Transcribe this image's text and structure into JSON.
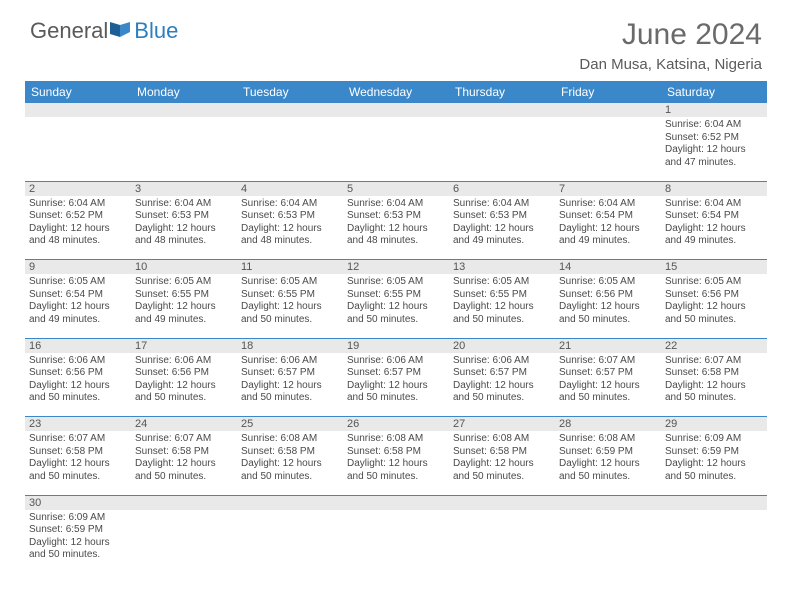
{
  "brand": {
    "general": "General",
    "blue": "Blue"
  },
  "title": "June 2024",
  "location": "Dan Musa, Katsina, Nigeria",
  "colors": {
    "header_bg": "#3a87c9",
    "header_text": "#ffffff",
    "daynum_bg": "#e9e9e9",
    "border": "#3a87c9",
    "text": "#4a4a4a",
    "title_text": "#6a6a6a",
    "logo_blue": "#2b7fbf"
  },
  "days": [
    "Sunday",
    "Monday",
    "Tuesday",
    "Wednesday",
    "Thursday",
    "Friday",
    "Saturday"
  ],
  "weeks": [
    [
      null,
      null,
      null,
      null,
      null,
      null,
      {
        "n": "1",
        "sr": "6:04 AM",
        "ss": "6:52 PM",
        "dl": "12 hours and 47 minutes."
      }
    ],
    [
      {
        "n": "2",
        "sr": "6:04 AM",
        "ss": "6:52 PM",
        "dl": "12 hours and 48 minutes."
      },
      {
        "n": "3",
        "sr": "6:04 AM",
        "ss": "6:53 PM",
        "dl": "12 hours and 48 minutes."
      },
      {
        "n": "4",
        "sr": "6:04 AM",
        "ss": "6:53 PM",
        "dl": "12 hours and 48 minutes."
      },
      {
        "n": "5",
        "sr": "6:04 AM",
        "ss": "6:53 PM",
        "dl": "12 hours and 48 minutes."
      },
      {
        "n": "6",
        "sr": "6:04 AM",
        "ss": "6:53 PM",
        "dl": "12 hours and 49 minutes."
      },
      {
        "n": "7",
        "sr": "6:04 AM",
        "ss": "6:54 PM",
        "dl": "12 hours and 49 minutes."
      },
      {
        "n": "8",
        "sr": "6:04 AM",
        "ss": "6:54 PM",
        "dl": "12 hours and 49 minutes."
      }
    ],
    [
      {
        "n": "9",
        "sr": "6:05 AM",
        "ss": "6:54 PM",
        "dl": "12 hours and 49 minutes."
      },
      {
        "n": "10",
        "sr": "6:05 AM",
        "ss": "6:55 PM",
        "dl": "12 hours and 49 minutes."
      },
      {
        "n": "11",
        "sr": "6:05 AM",
        "ss": "6:55 PM",
        "dl": "12 hours and 50 minutes."
      },
      {
        "n": "12",
        "sr": "6:05 AM",
        "ss": "6:55 PM",
        "dl": "12 hours and 50 minutes."
      },
      {
        "n": "13",
        "sr": "6:05 AM",
        "ss": "6:55 PM",
        "dl": "12 hours and 50 minutes."
      },
      {
        "n": "14",
        "sr": "6:05 AM",
        "ss": "6:56 PM",
        "dl": "12 hours and 50 minutes."
      },
      {
        "n": "15",
        "sr": "6:05 AM",
        "ss": "6:56 PM",
        "dl": "12 hours and 50 minutes."
      }
    ],
    [
      {
        "n": "16",
        "sr": "6:06 AM",
        "ss": "6:56 PM",
        "dl": "12 hours and 50 minutes."
      },
      {
        "n": "17",
        "sr": "6:06 AM",
        "ss": "6:56 PM",
        "dl": "12 hours and 50 minutes."
      },
      {
        "n": "18",
        "sr": "6:06 AM",
        "ss": "6:57 PM",
        "dl": "12 hours and 50 minutes."
      },
      {
        "n": "19",
        "sr": "6:06 AM",
        "ss": "6:57 PM",
        "dl": "12 hours and 50 minutes."
      },
      {
        "n": "20",
        "sr": "6:06 AM",
        "ss": "6:57 PM",
        "dl": "12 hours and 50 minutes."
      },
      {
        "n": "21",
        "sr": "6:07 AM",
        "ss": "6:57 PM",
        "dl": "12 hours and 50 minutes."
      },
      {
        "n": "22",
        "sr": "6:07 AM",
        "ss": "6:58 PM",
        "dl": "12 hours and 50 minutes."
      }
    ],
    [
      {
        "n": "23",
        "sr": "6:07 AM",
        "ss": "6:58 PM",
        "dl": "12 hours and 50 minutes."
      },
      {
        "n": "24",
        "sr": "6:07 AM",
        "ss": "6:58 PM",
        "dl": "12 hours and 50 minutes."
      },
      {
        "n": "25",
        "sr": "6:08 AM",
        "ss": "6:58 PM",
        "dl": "12 hours and 50 minutes."
      },
      {
        "n": "26",
        "sr": "6:08 AM",
        "ss": "6:58 PM",
        "dl": "12 hours and 50 minutes."
      },
      {
        "n": "27",
        "sr": "6:08 AM",
        "ss": "6:58 PM",
        "dl": "12 hours and 50 minutes."
      },
      {
        "n": "28",
        "sr": "6:08 AM",
        "ss": "6:59 PM",
        "dl": "12 hours and 50 minutes."
      },
      {
        "n": "29",
        "sr": "6:09 AM",
        "ss": "6:59 PM",
        "dl": "12 hours and 50 minutes."
      }
    ],
    [
      {
        "n": "30",
        "sr": "6:09 AM",
        "ss": "6:59 PM",
        "dl": "12 hours and 50 minutes."
      },
      null,
      null,
      null,
      null,
      null,
      null
    ]
  ],
  "labels": {
    "sunrise": "Sunrise:",
    "sunset": "Sunset:",
    "daylight": "Daylight:"
  }
}
